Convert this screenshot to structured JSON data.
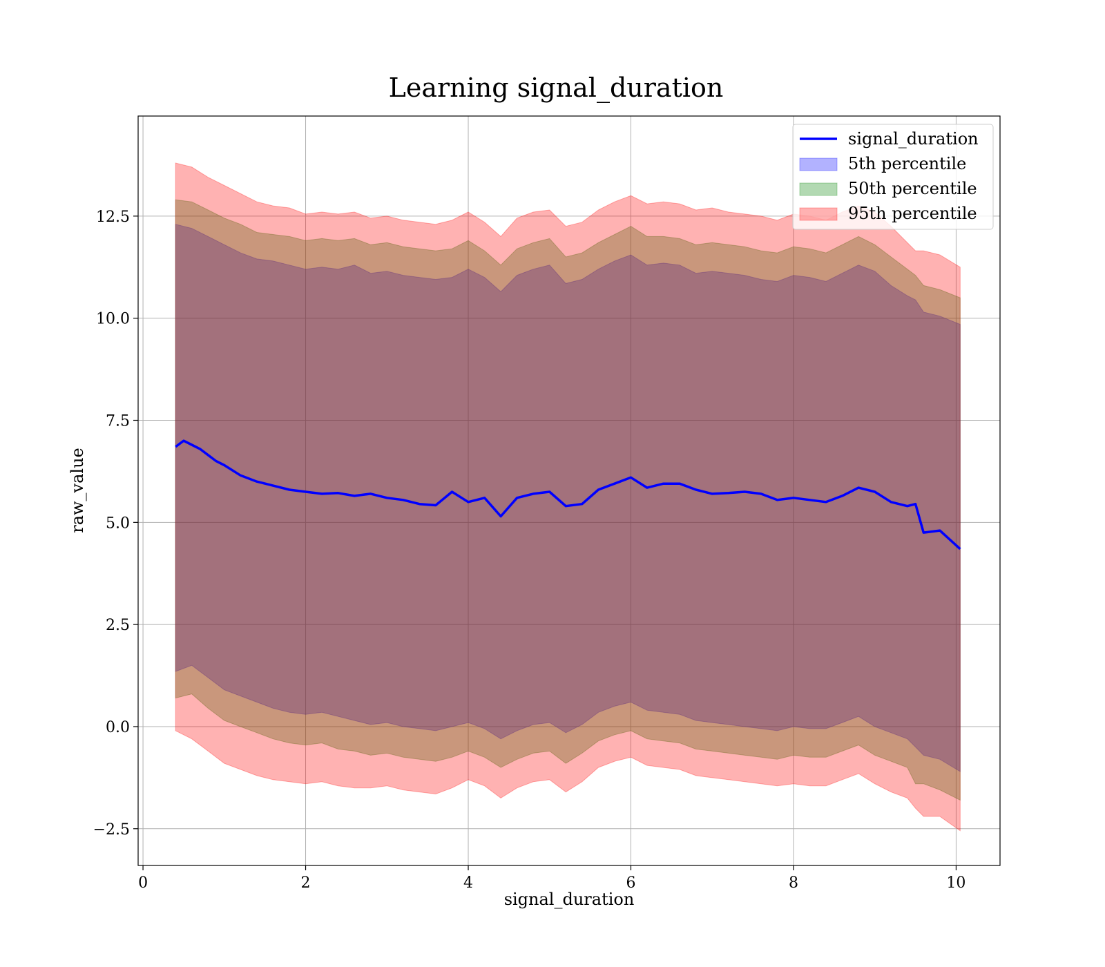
{
  "chart_data": {
    "type": "area",
    "title": "Learning signal_duration",
    "xlabel": "signal_duration",
    "ylabel": "raw_value",
    "xlim": [
      -0.06,
      10.54
    ],
    "ylim": [
      -3.4,
      14.95
    ],
    "xticks": [
      0,
      2,
      4,
      6,
      8,
      10
    ],
    "xtick_labels": [
      "0",
      "2",
      "4",
      "6",
      "8",
      "10"
    ],
    "yticks": [
      -2.5,
      0,
      2.5,
      5,
      7.5,
      10,
      12.5
    ],
    "ytick_labels": [
      "−2.5",
      "0.0",
      "2.5",
      "5.0",
      "7.5",
      "10.0",
      "12.5"
    ],
    "grid": true,
    "legend": "top-right",
    "colors": {
      "line": "#0000ff",
      "p5": "#0000ff",
      "p50": "#008000",
      "p95": "#ff0000"
    },
    "series": [
      {
        "name": "signal_duration",
        "kind": "line",
        "x": [
          0.4,
          0.5,
          0.6,
          0.7,
          0.8,
          0.9,
          1.0,
          1.2,
          1.4,
          1.6,
          1.8,
          2.0,
          2.2,
          2.4,
          2.6,
          2.8,
          3.0,
          3.2,
          3.4,
          3.6,
          3.8,
          4.0,
          4.2,
          4.4,
          4.6,
          4.8,
          5.0,
          5.2,
          5.4,
          5.6,
          5.8,
          6.0,
          6.2,
          6.4,
          6.6,
          6.8,
          7.0,
          7.2,
          7.4,
          7.6,
          7.8,
          8.0,
          8.2,
          8.4,
          8.6,
          8.8,
          9.0,
          9.2,
          9.4,
          9.5,
          9.6,
          9.8,
          10.05
        ],
        "y": [
          6.85,
          7.0,
          6.9,
          6.8,
          6.65,
          6.5,
          6.4,
          6.15,
          6.0,
          5.9,
          5.8,
          5.75,
          5.7,
          5.72,
          5.65,
          5.7,
          5.6,
          5.55,
          5.45,
          5.42,
          5.75,
          5.5,
          5.6,
          5.15,
          5.6,
          5.7,
          5.75,
          5.4,
          5.45,
          5.8,
          5.95,
          6.1,
          5.85,
          5.95,
          5.95,
          5.8,
          5.7,
          5.72,
          5.75,
          5.7,
          5.55,
          5.6,
          5.55,
          5.5,
          5.65,
          5.85,
          5.75,
          5.5,
          5.4,
          5.45,
          4.75,
          4.8,
          4.35
        ]
      },
      {
        "name": "5th percentile",
        "kind": "band",
        "x": [
          0.4,
          0.6,
          0.8,
          1.0,
          1.2,
          1.4,
          1.6,
          1.8,
          2.0,
          2.2,
          2.4,
          2.6,
          2.8,
          3.0,
          3.2,
          3.4,
          3.6,
          3.8,
          4.0,
          4.2,
          4.4,
          4.6,
          4.8,
          5.0,
          5.2,
          5.4,
          5.6,
          5.8,
          6.0,
          6.2,
          6.4,
          6.6,
          6.8,
          7.0,
          7.2,
          7.4,
          7.6,
          7.8,
          8.0,
          8.2,
          8.4,
          8.6,
          8.8,
          9.0,
          9.2,
          9.4,
          9.5,
          9.6,
          9.8,
          10.05
        ],
        "upper": [
          12.3,
          12.2,
          12.0,
          11.8,
          11.6,
          11.45,
          11.4,
          11.3,
          11.2,
          11.25,
          11.2,
          11.3,
          11.1,
          11.15,
          11.05,
          11.0,
          10.95,
          11.0,
          11.2,
          11.0,
          10.65,
          11.05,
          11.2,
          11.3,
          10.85,
          10.95,
          11.2,
          11.4,
          11.55,
          11.3,
          11.35,
          11.3,
          11.1,
          11.15,
          11.1,
          11.05,
          10.95,
          10.9,
          11.05,
          11.0,
          10.9,
          11.1,
          11.3,
          11.15,
          10.8,
          10.55,
          10.45,
          10.15,
          10.05,
          9.85
        ],
        "lower": [
          1.35,
          1.5,
          1.2,
          0.9,
          0.75,
          0.6,
          0.45,
          0.35,
          0.3,
          0.35,
          0.25,
          0.15,
          0.05,
          0.1,
          0.0,
          -0.05,
          -0.1,
          0.0,
          0.1,
          -0.05,
          -0.3,
          -0.1,
          0.05,
          0.1,
          -0.15,
          0.05,
          0.35,
          0.5,
          0.6,
          0.4,
          0.35,
          0.3,
          0.15,
          0.1,
          0.05,
          0.0,
          -0.05,
          -0.1,
          0.0,
          -0.05,
          -0.05,
          0.1,
          0.25,
          0.0,
          -0.15,
          -0.3,
          -0.5,
          -0.7,
          -0.8,
          -1.1
        ]
      },
      {
        "name": "50th percentile",
        "kind": "band",
        "x": [
          0.4,
          0.6,
          0.8,
          1.0,
          1.2,
          1.4,
          1.6,
          1.8,
          2.0,
          2.2,
          2.4,
          2.6,
          2.8,
          3.0,
          3.2,
          3.4,
          3.6,
          3.8,
          4.0,
          4.2,
          4.4,
          4.6,
          4.8,
          5.0,
          5.2,
          5.4,
          5.6,
          5.8,
          6.0,
          6.2,
          6.4,
          6.6,
          6.8,
          7.0,
          7.2,
          7.4,
          7.6,
          7.8,
          8.0,
          8.2,
          8.4,
          8.6,
          8.8,
          9.0,
          9.2,
          9.4,
          9.5,
          9.6,
          9.8,
          10.05
        ],
        "upper": [
          12.9,
          12.85,
          12.65,
          12.45,
          12.3,
          12.1,
          12.05,
          12.0,
          11.9,
          11.95,
          11.9,
          11.95,
          11.8,
          11.85,
          11.75,
          11.7,
          11.65,
          11.7,
          11.9,
          11.65,
          11.3,
          11.7,
          11.85,
          11.95,
          11.5,
          11.6,
          11.85,
          12.05,
          12.25,
          12.0,
          12.0,
          11.95,
          11.8,
          11.85,
          11.8,
          11.75,
          11.65,
          11.6,
          11.75,
          11.7,
          11.6,
          11.8,
          12.0,
          11.8,
          11.5,
          11.2,
          11.05,
          10.8,
          10.7,
          10.5
        ],
        "lower": [
          0.7,
          0.8,
          0.45,
          0.15,
          0.0,
          -0.15,
          -0.3,
          -0.4,
          -0.45,
          -0.4,
          -0.55,
          -0.6,
          -0.7,
          -0.65,
          -0.75,
          -0.8,
          -0.85,
          -0.75,
          -0.6,
          -0.75,
          -1.0,
          -0.8,
          -0.65,
          -0.6,
          -0.9,
          -0.65,
          -0.35,
          -0.2,
          -0.1,
          -0.3,
          -0.35,
          -0.4,
          -0.55,
          -0.6,
          -0.65,
          -0.7,
          -0.75,
          -0.8,
          -0.7,
          -0.75,
          -0.75,
          -0.6,
          -0.45,
          -0.7,
          -0.85,
          -1.0,
          -1.4,
          -1.4,
          -1.55,
          -1.8
        ]
      },
      {
        "name": "95th percentile",
        "kind": "band",
        "x": [
          0.4,
          0.6,
          0.8,
          1.0,
          1.2,
          1.4,
          1.6,
          1.8,
          2.0,
          2.2,
          2.4,
          2.6,
          2.8,
          3.0,
          3.2,
          3.4,
          3.6,
          3.8,
          4.0,
          4.2,
          4.4,
          4.6,
          4.8,
          5.0,
          5.2,
          5.4,
          5.6,
          5.8,
          6.0,
          6.2,
          6.4,
          6.6,
          6.8,
          7.0,
          7.2,
          7.4,
          7.6,
          7.8,
          8.0,
          8.2,
          8.4,
          8.6,
          8.8,
          9.0,
          9.2,
          9.4,
          9.5,
          9.6,
          9.8,
          10.05
        ],
        "upper": [
          13.8,
          13.7,
          13.45,
          13.25,
          13.05,
          12.85,
          12.75,
          12.7,
          12.55,
          12.6,
          12.55,
          12.6,
          12.45,
          12.5,
          12.4,
          12.35,
          12.3,
          12.4,
          12.6,
          12.35,
          12.0,
          12.45,
          12.6,
          12.65,
          12.25,
          12.35,
          12.65,
          12.85,
          13.0,
          12.8,
          12.85,
          12.8,
          12.65,
          12.7,
          12.6,
          12.55,
          12.5,
          12.4,
          12.55,
          12.5,
          12.4,
          12.6,
          12.75,
          12.6,
          12.25,
          11.85,
          11.65,
          11.65,
          11.55,
          11.25
        ],
        "lower": [
          -0.1,
          -0.3,
          -0.6,
          -0.9,
          -1.05,
          -1.2,
          -1.3,
          -1.35,
          -1.4,
          -1.35,
          -1.45,
          -1.5,
          -1.5,
          -1.45,
          -1.55,
          -1.6,
          -1.65,
          -1.5,
          -1.3,
          -1.45,
          -1.75,
          -1.5,
          -1.35,
          -1.3,
          -1.6,
          -1.35,
          -1.0,
          -0.85,
          -0.75,
          -0.95,
          -1.0,
          -1.05,
          -1.2,
          -1.25,
          -1.3,
          -1.35,
          -1.4,
          -1.45,
          -1.4,
          -1.45,
          -1.45,
          -1.3,
          -1.15,
          -1.4,
          -1.6,
          -1.75,
          -2.0,
          -2.2,
          -2.2,
          -2.55
        ]
      }
    ]
  }
}
